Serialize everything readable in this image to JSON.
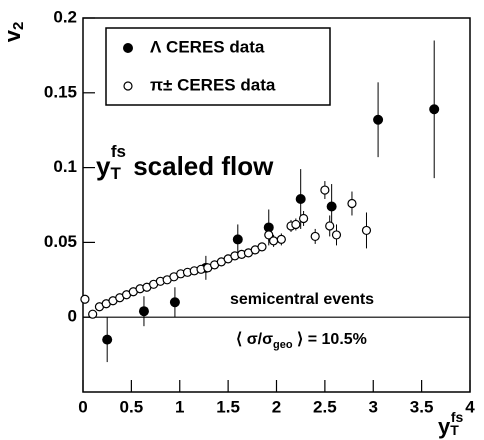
{
  "chart_data": {
    "type": "scatter",
    "y_label": {
      "base": "v",
      "sub": "2"
    },
    "x_label": {
      "base": "y",
      "sub": "T",
      "sup": "fs"
    },
    "xlim": [
      0,
      4
    ],
    "ylim": [
      -0.05,
      0.2
    ],
    "xticks": [
      0,
      0.5,
      1,
      1.5,
      2,
      2.5,
      3,
      3.5,
      4
    ],
    "yticks": [
      0,
      0.05,
      0.1,
      0.15,
      0.2
    ],
    "hline": 0,
    "annotations": {
      "flow": {
        "base": "y",
        "sub": "T",
        "sup": "fs",
        "rest": " scaled flow"
      },
      "events": "semicentral events",
      "centrality": [
        "⟨ σ/σ",
        "geo",
        " ⟩ = 10.5%"
      ]
    },
    "series": [
      {
        "name": "Λ CERES data",
        "marker": "filled",
        "color": "#000000",
        "x": [
          0.25,
          0.63,
          0.95,
          1.27,
          1.6,
          1.92,
          2.25,
          2.57,
          3.05,
          3.63
        ],
        "values": [
          -0.015,
          0.004,
          0.01,
          0.033,
          0.052,
          0.06,
          0.079,
          0.074,
          0.132,
          0.139
        ],
        "errors": [
          0.015,
          0.01,
          0.01,
          0.008,
          0.01,
          0.012,
          0.02,
          0.015,
          0.025,
          0.046
        ]
      },
      {
        "name": "π± CERES data",
        "marker": "open",
        "color": "#000000",
        "x": [
          0.02,
          0.1,
          0.17,
          0.24,
          0.31,
          0.38,
          0.45,
          0.52,
          0.59,
          0.66,
          0.73,
          0.8,
          0.87,
          0.94,
          1.01,
          1.08,
          1.15,
          1.22,
          1.29,
          1.36,
          1.43,
          1.5,
          1.57,
          1.64,
          1.71,
          1.78,
          1.85,
          1.92,
          1.97,
          2.05,
          2.15,
          2.2,
          2.28,
          2.4,
          2.5,
          2.55,
          2.62,
          2.78,
          2.93
        ],
        "values": [
          0.012,
          0.002,
          0.007,
          0.009,
          0.011,
          0.013,
          0.015,
          0.017,
          0.019,
          0.02,
          0.022,
          0.024,
          0.025,
          0.027,
          0.029,
          0.03,
          0.031,
          0.032,
          0.033,
          0.035,
          0.037,
          0.039,
          0.041,
          0.042,
          0.043,
          0.045,
          0.047,
          0.055,
          0.051,
          0.052,
          0.061,
          0.062,
          0.066,
          0.054,
          0.085,
          0.061,
          0.055,
          0.076,
          0.058
        ],
        "errors": [
          0.001,
          0.001,
          0.001,
          0.001,
          0.001,
          0.001,
          0.001,
          0.001,
          0.001,
          0.001,
          0.001,
          0.001,
          0.001,
          0.001,
          0.001,
          0.001,
          0.001,
          0.001,
          0.001,
          0.001,
          0.001,
          0.001,
          0.001,
          0.001,
          0.001,
          0.001,
          0.002,
          0.004,
          0.004,
          0.004,
          0.004,
          0.004,
          0.005,
          0.005,
          0.006,
          0.007,
          0.007,
          0.008,
          0.012
        ]
      }
    ]
  }
}
